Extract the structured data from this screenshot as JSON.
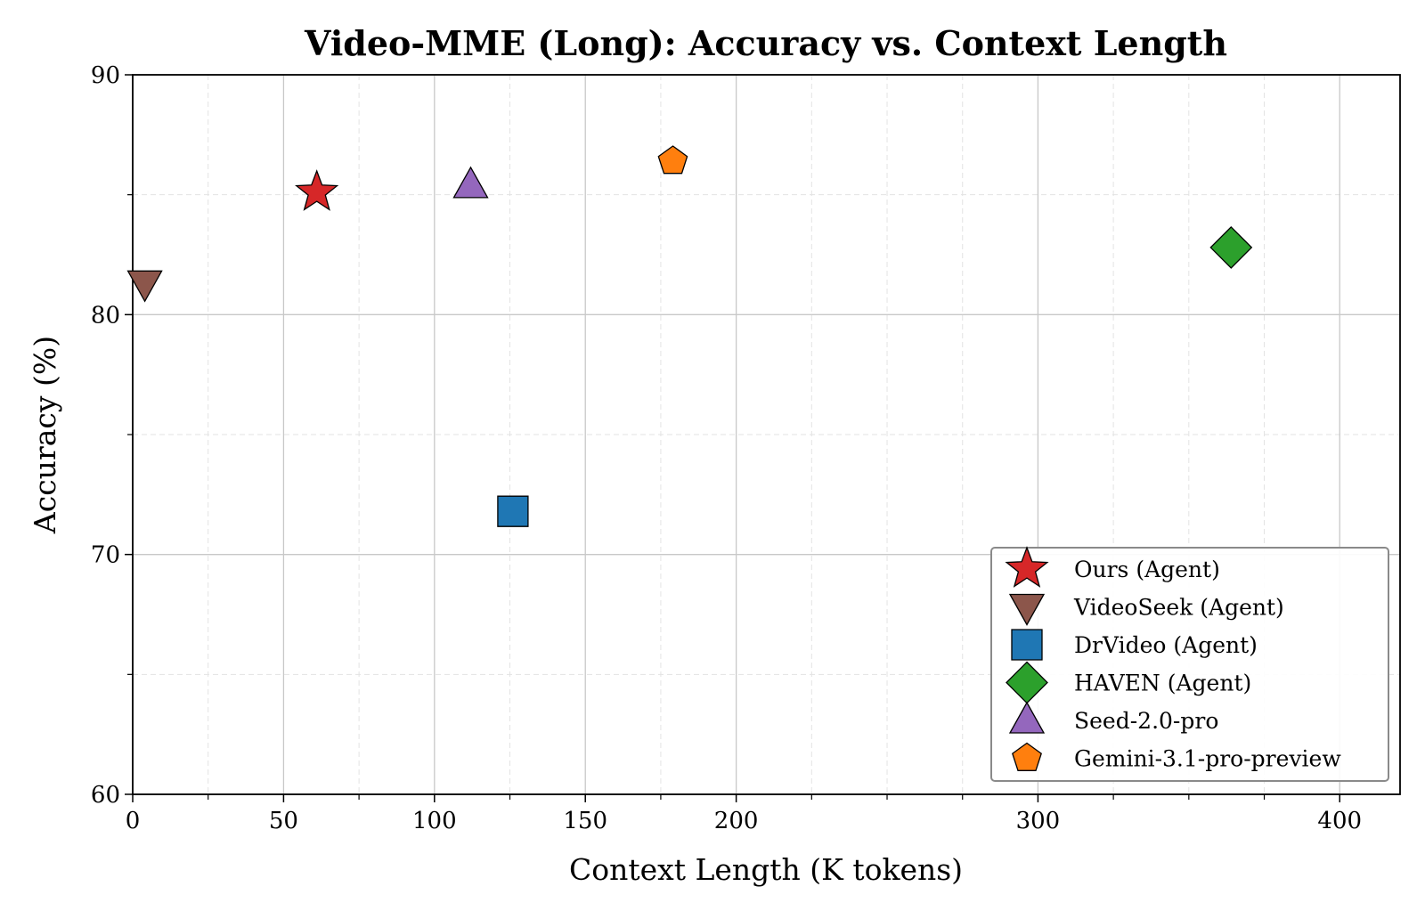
{
  "chart_data": {
    "type": "scatter",
    "title": "Video-MME (Long): Accuracy vs. Context Length",
    "xlabel": "Context Length (K tokens)",
    "ylabel": "Accuracy (%)",
    "xlim": [
      0,
      420
    ],
    "ylim": [
      60,
      90
    ],
    "x_ticks": [
      {
        "value": 0,
        "label": "0"
      },
      {
        "value": 50,
        "label": "50"
      },
      {
        "value": 100,
        "label": "100"
      },
      {
        "value": 150,
        "label": "150"
      },
      {
        "value": 200,
        "label": "200"
      },
      {
        "value": 300,
        "label": "300"
      },
      {
        "value": 400,
        "label": "400"
      }
    ],
    "x_minor_ticks": [
      25,
      75,
      125,
      175,
      225,
      250,
      275,
      325,
      350,
      375
    ],
    "y_ticks": [
      {
        "value": 60,
        "label": "60"
      },
      {
        "value": 70,
        "label": "70"
      },
      {
        "value": 80,
        "label": "80"
      },
      {
        "value": 90,
        "label": "90"
      }
    ],
    "y_minor_ticks": [
      65,
      75,
      85
    ],
    "grid": true,
    "legend_position": "lower-right",
    "series": [
      {
        "name": "Ours (Agent)",
        "marker": "star",
        "color": "#d62728",
        "x": 61,
        "y": 85.1
      },
      {
        "name": "VideoSeek (Agent)",
        "marker": "triangle-down",
        "color": "#8c564b",
        "x": 4,
        "y": 81.3
      },
      {
        "name": "DrVideo (Agent)",
        "marker": "square",
        "color": "#1f77b4",
        "x": 126,
        "y": 71.8
      },
      {
        "name": "HAVEN (Agent)",
        "marker": "diamond",
        "color": "#2ca02c",
        "x": 364,
        "y": 82.8
      },
      {
        "name": "Seed-2.0-pro",
        "marker": "triangle-up",
        "color": "#9467bd",
        "x": 112,
        "y": 85.4
      },
      {
        "name": "Gemini-3.1-pro-preview",
        "marker": "pentagon",
        "color": "#ff7f0e",
        "x": 179,
        "y": 86.4
      }
    ]
  }
}
